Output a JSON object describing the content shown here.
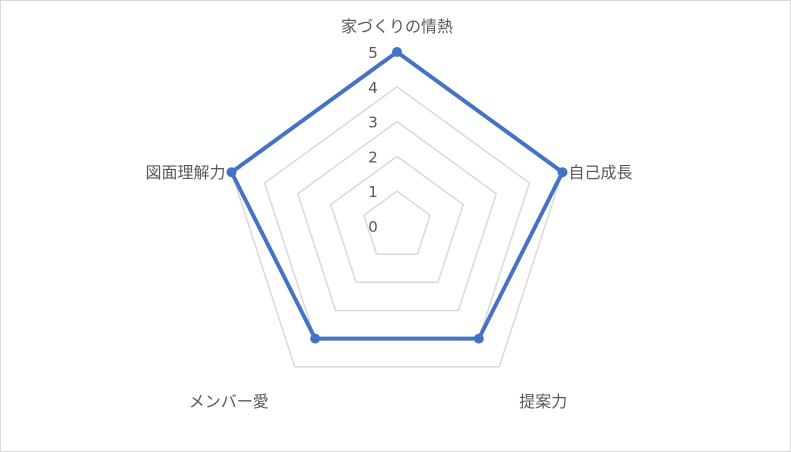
{
  "chart_data": {
    "type": "radar",
    "categories": [
      "家づくりの情熱",
      "自己成長",
      "提案力",
      "メンバー愛",
      "図面理解力"
    ],
    "series": [
      {
        "values": [
          5,
          5,
          4,
          4,
          5
        ],
        "color": "#4472c4"
      }
    ],
    "rlim": [
      0,
      5
    ],
    "ticks": [
      "0",
      "1",
      "2",
      "3",
      "4",
      "5"
    ],
    "grid": true,
    "grid_color": "#d9d9d9"
  }
}
